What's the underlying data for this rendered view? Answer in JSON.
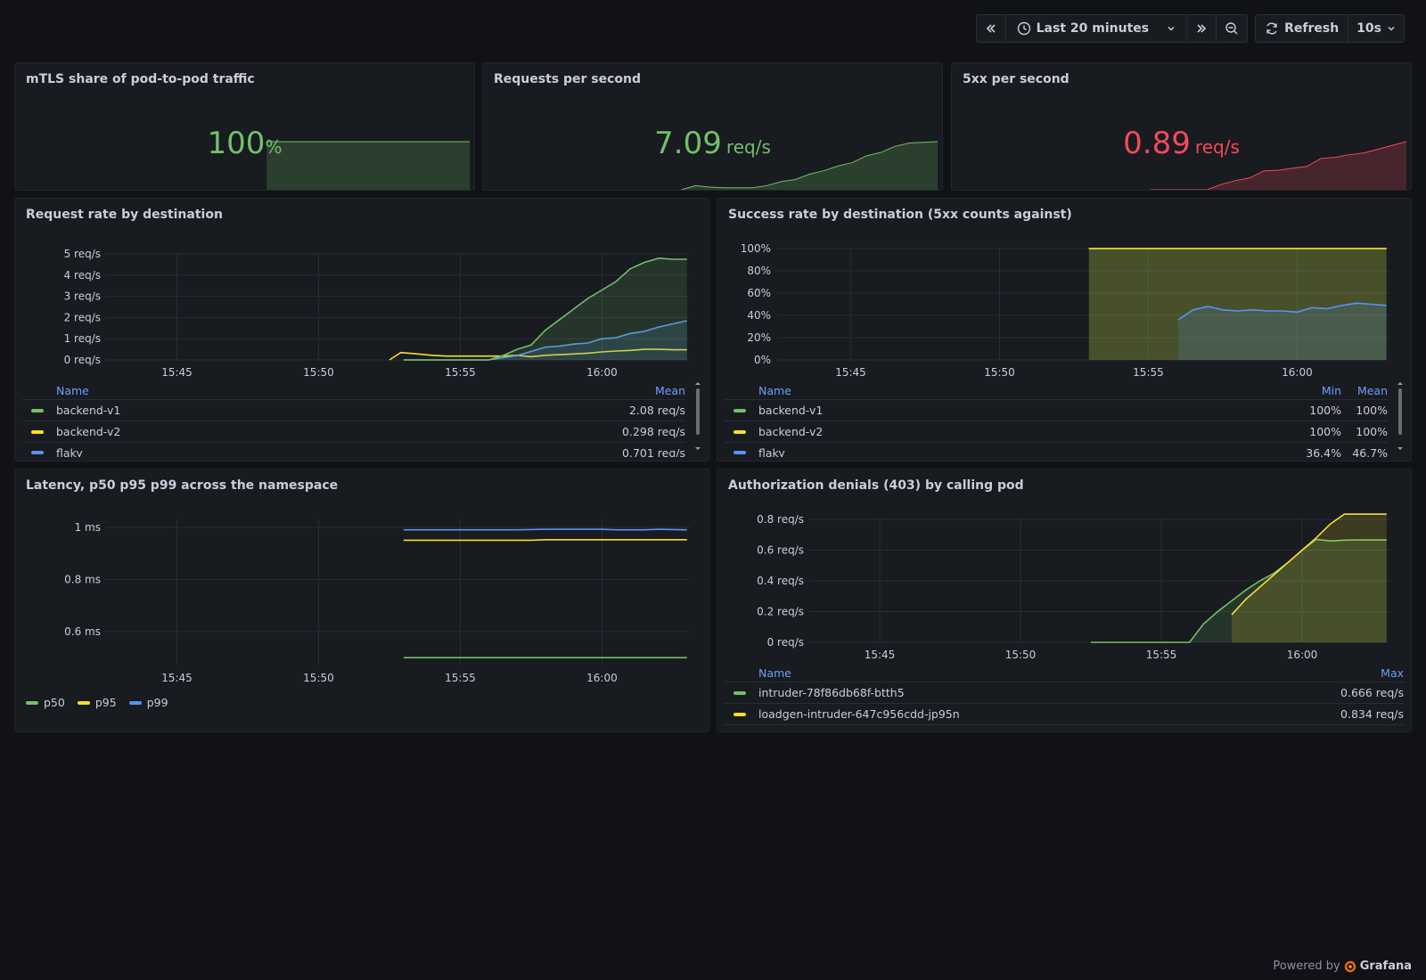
{
  "toolbar": {
    "time_range": "Last 20 minutes",
    "refresh_label": "Refresh",
    "refresh_interval": "10s",
    "icons": [
      "chevron-double-left-icon",
      "clock-icon",
      "chevron-down-icon",
      "chevron-double-right-icon",
      "zoom-out-icon",
      "refresh-icon",
      "chevron-down-icon"
    ]
  },
  "colors": {
    "green": "#73bf69",
    "yellow": "#fade2a",
    "blue": "#5794f2",
    "red": "#f2495c",
    "legend_header": "#6e9fff"
  },
  "stats": [
    {
      "title": "mTLS share of pod-to-pod traffic",
      "value": "100",
      "unit": "%",
      "color": "#73bf69",
      "sparkline": [
        null,
        null,
        null,
        null,
        null,
        100,
        100,
        100,
        100,
        100,
        100,
        100,
        100,
        100,
        100,
        100,
        100,
        100,
        100,
        100,
        100,
        100,
        100,
        100,
        100
      ]
    },
    {
      "title": "Requests per second",
      "value": "7.09",
      "unit": "req/s",
      "color": "#73bf69",
      "sparkline": [
        0,
        0.6,
        0.4,
        0.3,
        0.3,
        0.3,
        0.6,
        1.2,
        1.5,
        2.3,
        2.8,
        3.5,
        4.0,
        5.0,
        5.5,
        6.4,
        6.9,
        7.0,
        7.1
      ]
    },
    {
      "title": "5xx per second",
      "value": "0.89",
      "unit": "req/s",
      "color": "#f2495c",
      "sparkline": [
        0,
        0,
        0,
        0,
        0,
        0.1,
        0.17,
        0.22,
        0.35,
        0.36,
        0.4,
        0.43,
        0.58,
        0.6,
        0.65,
        0.68,
        0.75,
        0.82,
        0.89
      ]
    }
  ],
  "request_rate": {
    "title": "Request rate by destination",
    "legend_headers": {
      "name": "Name",
      "mean": "Mean"
    },
    "legend": [
      {
        "name": "backend-v1",
        "mean": "2.08 req/s",
        "color": "#73bf69"
      },
      {
        "name": "backend-v2",
        "mean": "0.298 req/s",
        "color": "#fade2a"
      },
      {
        "name": "flaky",
        "mean": "0.701 req/s",
        "color": "#5794f2"
      }
    ],
    "chart_data": {
      "type": "line",
      "title": "Request rate by destination",
      "x_ticks": [
        "15:45",
        "15:50",
        "15:55",
        "16:00"
      ],
      "y_ticks": [
        "0 req/s",
        "1 req/s",
        "2 req/s",
        "3 req/s",
        "4 req/s",
        "5 req/s"
      ],
      "ylim": [
        0,
        5
      ],
      "xlim_minutes": [
        -17.5,
        3.1
      ],
      "series": [
        {
          "name": "backend-v2",
          "color": "#fade2a",
          "fill": false,
          "x": [
            -7.5,
            -7.1,
            -6.5,
            -6,
            -5.5,
            -5,
            -4.5,
            -4,
            -3.5,
            -3,
            -2.5,
            -2,
            -1.5,
            -1,
            -0.5,
            0,
            0.5,
            1,
            1.5,
            2,
            2.5,
            3
          ],
          "y": [
            0,
            0.35,
            0.28,
            0.22,
            0.18,
            0.18,
            0.18,
            0.18,
            0.18,
            0.22,
            0.15,
            0.22,
            0.25,
            0.28,
            0.32,
            0.38,
            0.42,
            0.45,
            0.5,
            0.5,
            0.48,
            0.48
          ]
        },
        {
          "name": "flaky",
          "color": "#5794f2",
          "fill": true,
          "x": [
            -7,
            -6,
            -5,
            -4,
            -3.5,
            -3,
            -2.5,
            -2,
            -1.5,
            -1,
            -0.5,
            0,
            0.5,
            1,
            1.5,
            2,
            2.5,
            3
          ],
          "y": [
            0,
            0,
            0,
            0,
            0.1,
            0.2,
            0.4,
            0.6,
            0.65,
            0.75,
            0.8,
            1.0,
            1.05,
            1.25,
            1.35,
            1.55,
            1.7,
            1.85
          ]
        },
        {
          "name": "backend-v1",
          "color": "#73bf69",
          "fill": true,
          "x": [
            -7,
            -6,
            -5,
            -4,
            -3.5,
            -3,
            -2.5,
            -2,
            -1.5,
            -1,
            -0.5,
            0,
            0.5,
            1,
            1.5,
            2,
            2.5,
            3
          ],
          "y": [
            0,
            0,
            0,
            0,
            0.2,
            0.5,
            0.7,
            1.4,
            1.9,
            2.4,
            2.9,
            3.3,
            3.7,
            4.3,
            4.6,
            4.8,
            4.75,
            4.75
          ]
        }
      ]
    }
  },
  "success_rate": {
    "title": "Success rate by destination (5xx counts against)",
    "legend_headers": {
      "name": "Name",
      "min": "Min",
      "mean": "Mean"
    },
    "legend": [
      {
        "name": "backend-v1",
        "min": "100%",
        "mean": "100%",
        "color": "#73bf69"
      },
      {
        "name": "backend-v2",
        "min": "100%",
        "mean": "100%",
        "color": "#fade2a"
      },
      {
        "name": "flaky",
        "min": "36.4%",
        "mean": "46.7%",
        "color": "#5794f2"
      }
    ],
    "chart_data": {
      "type": "line",
      "title": "Success rate by destination (5xx counts against)",
      "x_ticks": [
        "15:45",
        "15:50",
        "15:55",
        "16:00"
      ],
      "y_ticks": [
        "0%",
        "20%",
        "40%",
        "60%",
        "80%",
        "100%"
      ],
      "ylim": [
        0,
        100
      ],
      "xlim_minutes": [
        -17.5,
        3.1
      ],
      "series": [
        {
          "name": "backend-v1",
          "color": "#73bf69",
          "fill": true,
          "x": [
            -7,
            3
          ],
          "y": [
            100,
            100
          ]
        },
        {
          "name": "backend-v2",
          "color": "#fade2a",
          "fill": true,
          "x": [
            -7,
            3
          ],
          "y": [
            100,
            100
          ]
        },
        {
          "name": "flaky",
          "color": "#5794f2",
          "fill": true,
          "x": [
            -4,
            -3.5,
            -3,
            -2.5,
            -2,
            -1.5,
            -1,
            -0.5,
            0,
            0.5,
            1,
            1.5,
            2,
            2.5,
            3
          ],
          "y": [
            36,
            45,
            48,
            45,
            44,
            45,
            44,
            44,
            43,
            47,
            46,
            49,
            51,
            50,
            49
          ]
        }
      ]
    }
  },
  "latency": {
    "title": "Latency, p50 p95 p99 across the namespace",
    "legend": [
      {
        "name": "p50",
        "color": "#73bf69"
      },
      {
        "name": "p95",
        "color": "#fade2a"
      },
      {
        "name": "p99",
        "color": "#5794f2"
      }
    ],
    "chart_data": {
      "type": "line",
      "title": "Latency, p50 p95 p99 across the namespace",
      "x_ticks": [
        "15:45",
        "15:50",
        "15:55",
        "16:00"
      ],
      "y_ticks": [
        "0.6 ms",
        "0.8 ms",
        "1 ms"
      ],
      "y_tick_values": [
        0.6,
        0.8,
        1.0
      ],
      "ylim": [
        0.47,
        1.03
      ],
      "xlim_minutes": [
        -17.5,
        3.1
      ],
      "series": [
        {
          "name": "p50",
          "color": "#73bf69",
          "x": [
            -7,
            3
          ],
          "y": [
            0.5,
            0.5
          ]
        },
        {
          "name": "p95",
          "color": "#fade2a",
          "x": [
            -7,
            -2.5,
            -2,
            3
          ],
          "y": [
            0.95,
            0.95,
            0.952,
            0.952
          ]
        },
        {
          "name": "p99",
          "color": "#5794f2",
          "x": [
            -7,
            -3,
            -2,
            0,
            0.5,
            1.5,
            2,
            3
          ],
          "y": [
            0.99,
            0.99,
            0.992,
            0.992,
            0.99,
            0.99,
            0.992,
            0.99
          ]
        }
      ]
    }
  },
  "authz": {
    "title": "Authorization denials (403) by calling pod",
    "legend_headers": {
      "name": "Name",
      "max": "Max"
    },
    "legend": [
      {
        "name": "intruder-78f86db68f-btth5",
        "max": "0.666 req/s",
        "color": "#73bf69"
      },
      {
        "name": "loadgen-intruder-647c956cdd-jp95n",
        "max": "0.834 req/s",
        "color": "#fade2a"
      }
    ],
    "chart_data": {
      "type": "line",
      "title": "Authorization denials (403) by calling pod",
      "x_ticks": [
        "15:45",
        "15:50",
        "15:55",
        "16:00"
      ],
      "y_ticks": [
        "0 req/s",
        "0.2 req/s",
        "0.4 req/s",
        "0.6 req/s",
        "0.8 req/s"
      ],
      "ylim": [
        0,
        0.8
      ],
      "xlim_minutes": [
        -17.5,
        3.1
      ],
      "series": [
        {
          "name": "intruder-78f86db68f-btth5",
          "color": "#73bf69",
          "fill": true,
          "x": [
            -7.5,
            -4,
            -3.5,
            -3,
            -2.5,
            -2,
            -1.5,
            -1,
            -0.5,
            0,
            0.5,
            1,
            1.5,
            2,
            2.5,
            3
          ],
          "y": [
            0,
            0,
            0.12,
            0.2,
            0.27,
            0.34,
            0.4,
            0.45,
            0.52,
            0.6,
            0.67,
            0.66,
            0.665,
            0.666,
            0.666,
            0.666
          ]
        },
        {
          "name": "loadgen-intruder-647c956cdd-jp95n",
          "color": "#fade2a",
          "fill": true,
          "x": [
            -2.5,
            -2,
            -1.5,
            -1,
            -0.5,
            0,
            0.5,
            1,
            1.5,
            2,
            2.5,
            3
          ],
          "y": [
            0.18,
            0.28,
            0.36,
            0.44,
            0.52,
            0.6,
            0.68,
            0.77,
            0.834,
            0.834,
            0.834,
            0.834
          ]
        }
      ]
    }
  },
  "footer": {
    "powered_by": "Powered by",
    "brand": "Grafana"
  }
}
